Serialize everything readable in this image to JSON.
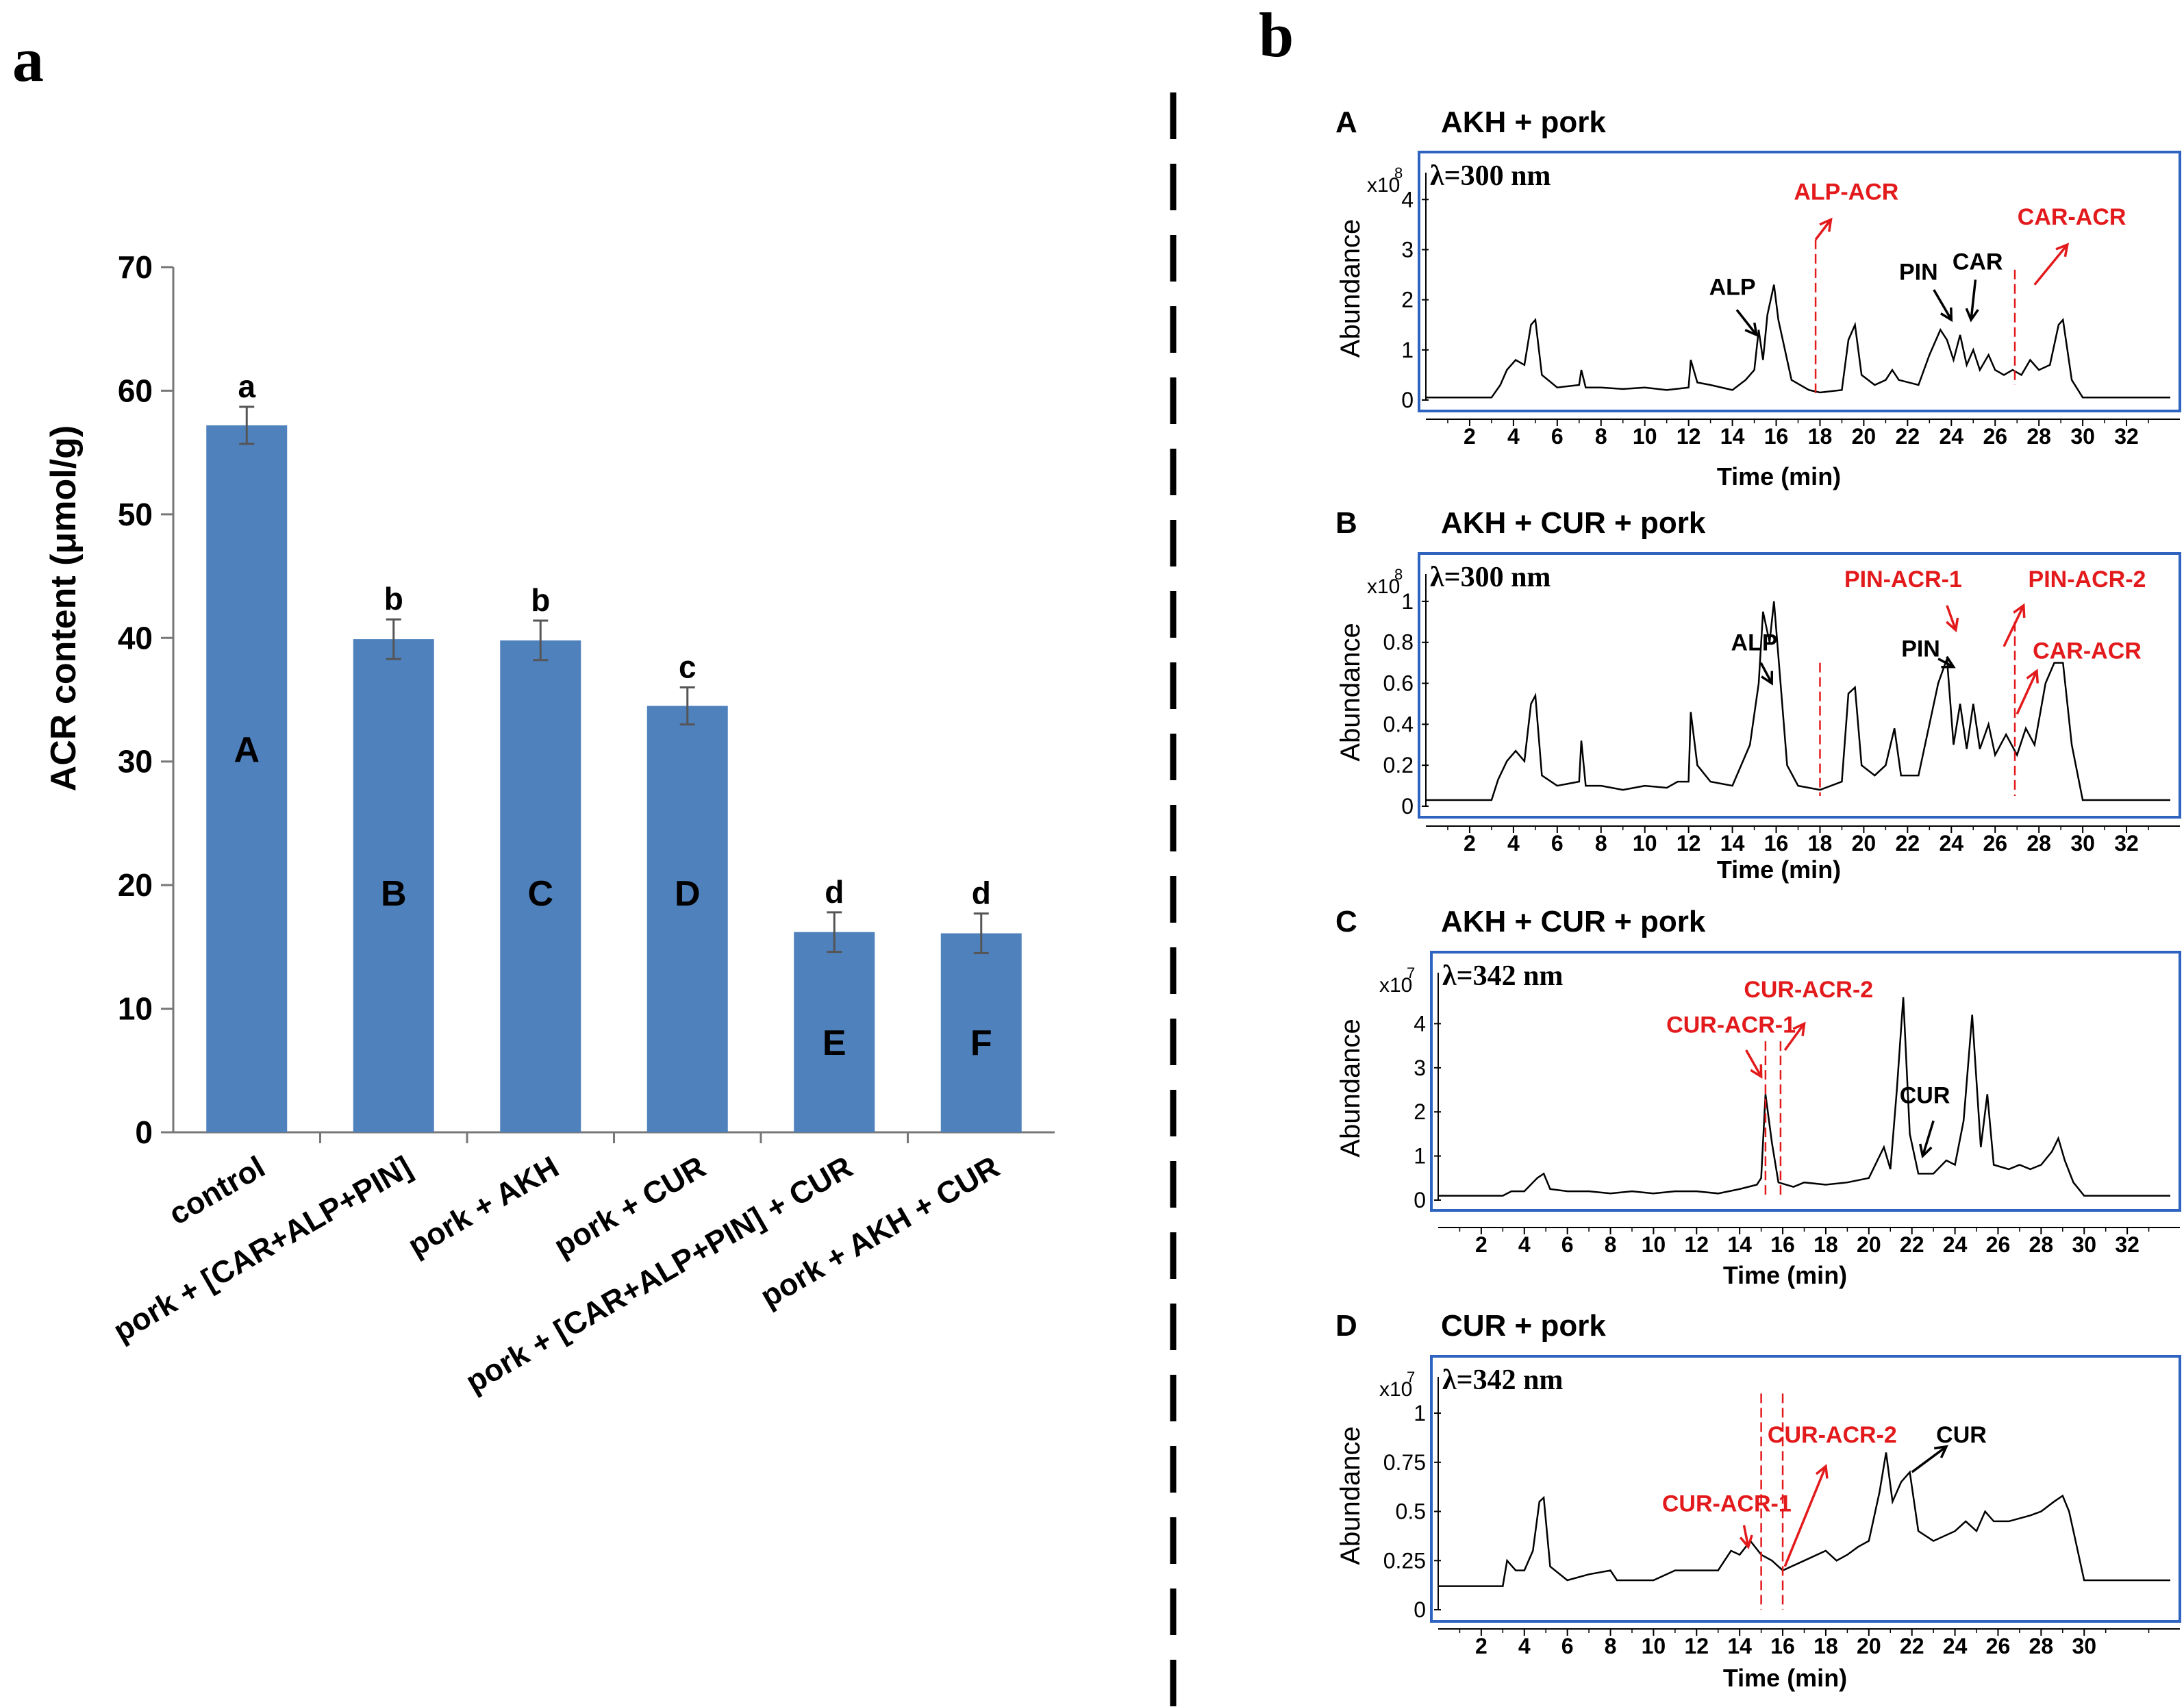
{
  "panel_a": {
    "label": "a",
    "chart_data": {
      "type": "bar",
      "ylabel": "ACR content (μmol/g)",
      "ylim": [
        0,
        70
      ],
      "yticks": [
        0,
        10,
        20,
        30,
        40,
        50,
        60,
        70
      ],
      "categories": [
        "control",
        "pork + [CAR+ALP+PIN]",
        "pork + AKH",
        "pork + CUR",
        "pork + [CAR+ALP+PIN] + CUR",
        "pork + AKH + CUR"
      ],
      "values": [
        57.2,
        39.9,
        39.8,
        34.5,
        16.2,
        16.1
      ],
      "errors": [
        1.5,
        1.6,
        1.6,
        1.5,
        1.6,
        1.6
      ],
      "significance_letters": [
        "a",
        "b",
        "b",
        "c",
        "d",
        "d"
      ],
      "bar_labels": [
        "A",
        "B",
        "C",
        "D",
        "E",
        "F"
      ],
      "bar_color": "#4f81bd"
    }
  },
  "panel_b": {
    "label": "b",
    "chromatograms": [
      {
        "label": "A",
        "title": "AKH + pork",
        "wavelength": "λ=300 nm",
        "ylabel": "Abundance",
        "multiplier_base": "x10",
        "multiplier_exp": "8",
        "xlabel": "Time (min)",
        "xticks": [
          2,
          4,
          6,
          8,
          10,
          12,
          14,
          16,
          18,
          20,
          22,
          24,
          26,
          28,
          30,
          32
        ],
        "yticks": [
          "0",
          "1",
          "2",
          "3",
          "4"
        ],
        "ylim": [
          0,
          4.4
        ],
        "xlim": [
          0,
          34
        ],
        "annotations": [
          {
            "text": "ALP",
            "color": "#000000"
          },
          {
            "text": "ALP-ACR",
            "color": "#e31a1c"
          },
          {
            "text": "PIN",
            "color": "#000000"
          },
          {
            "text": "CAR",
            "color": "#000000"
          },
          {
            "text": "CAR-ACR",
            "color": "#e31a1c"
          }
        ]
      },
      {
        "label": "B",
        "title": "AKH + CUR + pork",
        "wavelength": "λ=300 nm",
        "ylabel": "Abundance",
        "multiplier_base": "x10",
        "multiplier_exp": "8",
        "xlabel": "Time (min)",
        "xticks": [
          2,
          4,
          6,
          8,
          10,
          12,
          14,
          16,
          18,
          20,
          22,
          24,
          26,
          28,
          30,
          32
        ],
        "yticks": [
          "0",
          "0.2",
          "0.4",
          "0.6",
          "0.8",
          "1"
        ],
        "ylim": [
          0,
          1.1
        ],
        "xlim": [
          0,
          34
        ],
        "annotations": [
          {
            "text": "ALP",
            "color": "#000000"
          },
          {
            "text": "PIN-ACR-1",
            "color": "#e31a1c"
          },
          {
            "text": "PIN",
            "color": "#000000"
          },
          {
            "text": "PIN-ACR-2",
            "color": "#e31a1c"
          },
          {
            "text": "CAR-ACR",
            "color": "#e31a1c"
          }
        ]
      },
      {
        "label": "C",
        "title": "AKH + CUR + pork",
        "wavelength": "λ=342 nm",
        "ylabel": "Abundance",
        "multiplier_base": "x10",
        "multiplier_exp": "7",
        "xlabel": "Time (min)",
        "xticks": [
          2,
          4,
          6,
          8,
          10,
          12,
          14,
          16,
          18,
          20,
          22,
          24,
          26,
          28,
          30,
          32
        ],
        "yticks": [
          "0",
          "1",
          "2",
          "3",
          "4"
        ],
        "ylim": [
          0,
          5
        ],
        "xlim": [
          0,
          34
        ],
        "annotations": [
          {
            "text": "CUR-ACR-1",
            "color": "#e31a1c"
          },
          {
            "text": "CUR-ACR-2",
            "color": "#e31a1c"
          },
          {
            "text": "CUR",
            "color": "#000000"
          }
        ]
      },
      {
        "label": "D",
        "title": "CUR + pork",
        "wavelength": "λ=342 nm",
        "ylabel": "Abundance",
        "multiplier_base": "x10",
        "multiplier_exp": "7",
        "xlabel": "Time (min)",
        "xticks": [
          2,
          4,
          6,
          8,
          10,
          12,
          14,
          16,
          18,
          20,
          22,
          24,
          26,
          28,
          30
        ],
        "yticks": [
          "0",
          "0.25",
          "0.5",
          "0.75",
          "1"
        ],
        "ylim": [
          0,
          1.15
        ],
        "xlim": [
          0,
          34
        ],
        "annotations": [
          {
            "text": "CUR-ACR-1",
            "color": "#e31a1c"
          },
          {
            "text": "CUR-ACR-2",
            "color": "#e31a1c"
          },
          {
            "text": "CUR",
            "color": "#000000"
          }
        ]
      }
    ]
  }
}
